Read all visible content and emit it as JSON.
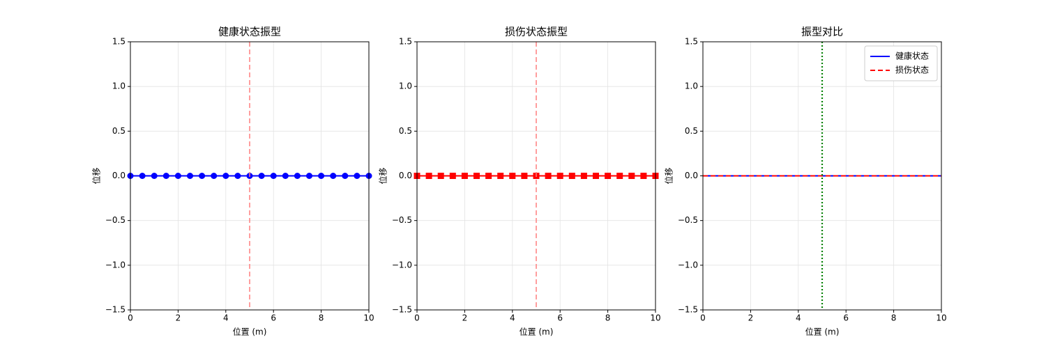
{
  "chart_data": [
    {
      "type": "line",
      "title": "健康状态振型",
      "xlabel": "位置 (m)",
      "ylabel": "位移",
      "x": [
        0,
        0.5,
        1,
        1.5,
        2,
        2.5,
        3,
        3.5,
        4,
        4.5,
        5,
        5.5,
        6,
        6.5,
        7,
        7.5,
        8,
        8.5,
        9,
        9.5,
        10
      ],
      "series": [
        {
          "color": "#0000ff",
          "marker": "circle",
          "dash": "solid",
          "values": [
            0,
            0,
            0,
            0,
            0,
            0,
            0,
            0,
            0,
            0,
            0,
            0,
            0,
            0,
            0,
            0,
            0,
            0,
            0,
            0,
            0
          ]
        }
      ],
      "vline": {
        "x": 5,
        "color": "#ff7f7f",
        "style": "dashed"
      },
      "xlim": [
        0,
        10
      ],
      "xticks": [
        0,
        2,
        4,
        6,
        8,
        10
      ],
      "ylim": [
        -1.5,
        1.5
      ],
      "yticks": [
        {
          "value": -1.5,
          "label": "−1.5"
        },
        {
          "value": -1,
          "label": "−1.0"
        },
        {
          "value": -0.5,
          "label": "−0.5"
        },
        {
          "value": 0,
          "label": "0.0"
        },
        {
          "value": 0.5,
          "label": "0.5"
        },
        {
          "value": 1,
          "label": "1.0"
        },
        {
          "value": 1.5,
          "label": "1.5"
        }
      ],
      "grid": true
    },
    {
      "type": "line",
      "title": "损伤状态振型",
      "xlabel": "位置 (m)",
      "ylabel": "位移",
      "x": [
        0,
        0.5,
        1,
        1.5,
        2,
        2.5,
        3,
        3.5,
        4,
        4.5,
        5,
        5.5,
        6,
        6.5,
        7,
        7.5,
        8,
        8.5,
        9,
        9.5,
        10
      ],
      "series": [
        {
          "color": "#ff0000",
          "marker": "square",
          "dash": "solid",
          "values": [
            0,
            0,
            0,
            0,
            0,
            0,
            0,
            0,
            0,
            0,
            0,
            0,
            0,
            0,
            0,
            0,
            0,
            0,
            0,
            0,
            0
          ]
        }
      ],
      "vline": {
        "x": 5,
        "color": "#ff7f7f",
        "style": "dashed"
      },
      "xlim": [
        0,
        10
      ],
      "xticks": [
        0,
        2,
        4,
        6,
        8,
        10
      ],
      "ylim": [
        -1.5,
        1.5
      ],
      "yticks": [
        {
          "value": -1.5,
          "label": "−1.5"
        },
        {
          "value": -1,
          "label": "−1.0"
        },
        {
          "value": -0.5,
          "label": "−0.5"
        },
        {
          "value": 0,
          "label": "0.0"
        },
        {
          "value": 0.5,
          "label": "0.5"
        },
        {
          "value": 1,
          "label": "1.0"
        },
        {
          "value": 1.5,
          "label": "1.5"
        }
      ],
      "grid": true
    },
    {
      "type": "line",
      "title": "振型对比",
      "xlabel": "位置 (m)",
      "ylabel": "位移",
      "x": [
        0,
        0.5,
        1,
        1.5,
        2,
        2.5,
        3,
        3.5,
        4,
        4.5,
        5,
        5.5,
        6,
        6.5,
        7,
        7.5,
        8,
        8.5,
        9,
        9.5,
        10
      ],
      "series": [
        {
          "name": "健康状态",
          "color": "#0000ff",
          "marker": "none",
          "dash": "solid",
          "values": [
            0,
            0,
            0,
            0,
            0,
            0,
            0,
            0,
            0,
            0,
            0,
            0,
            0,
            0,
            0,
            0,
            0,
            0,
            0,
            0,
            0
          ]
        },
        {
          "name": "损伤状态",
          "color": "#ff0000",
          "marker": "none",
          "dash": "dashed",
          "values": [
            0,
            0,
            0,
            0,
            0,
            0,
            0,
            0,
            0,
            0,
            0,
            0,
            0,
            0,
            0,
            0,
            0,
            0,
            0,
            0,
            0
          ]
        }
      ],
      "vline": {
        "x": 5,
        "color": "#008000",
        "style": "dotted"
      },
      "xlim": [
        0,
        10
      ],
      "xticks": [
        0,
        2,
        4,
        6,
        8,
        10
      ],
      "ylim": [
        -1.5,
        1.5
      ],
      "yticks": [
        {
          "value": -1.5,
          "label": "−1.5"
        },
        {
          "value": -1,
          "label": "−1.0"
        },
        {
          "value": -0.5,
          "label": "−0.5"
        },
        {
          "value": 0,
          "label": "0.0"
        },
        {
          "value": 0.5,
          "label": "0.5"
        },
        {
          "value": 1,
          "label": "1.0"
        },
        {
          "value": 1.5,
          "label": "1.5"
        }
      ],
      "grid": true,
      "legend": "upper right"
    }
  ]
}
